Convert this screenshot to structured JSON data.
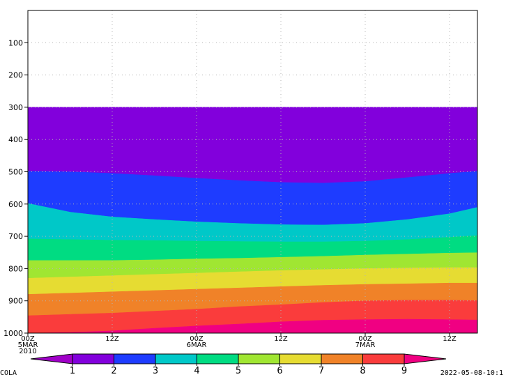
{
  "chart_data": {
    "type": "area",
    "title": "",
    "xlabel": "",
    "ylabel": "",
    "y_axis": {
      "reversed": true,
      "range": [
        0,
        1000
      ],
      "ticks": [
        100,
        200,
        300,
        400,
        500,
        600,
        700,
        800,
        900,
        1000
      ],
      "tick_labels": [
        "100",
        "200",
        "300",
        "400",
        "500",
        "600",
        "700",
        "800",
        "900",
        "1000"
      ]
    },
    "x_axis": {
      "range_hours": [
        0,
        60
      ],
      "ticks": [
        {
          "hour": 0,
          "lines": [
            "00Z",
            "5MAR",
            "2010"
          ]
        },
        {
          "hour": 12,
          "lines": [
            "12Z"
          ]
        },
        {
          "hour": 24,
          "lines": [
            "00Z",
            "6MAR"
          ]
        },
        {
          "hour": 36,
          "lines": [
            "12Z"
          ]
        },
        {
          "hour": 48,
          "lines": [
            "00Z",
            "7MAR"
          ]
        },
        {
          "hour": 60,
          "lines": [
            "12Z"
          ]
        }
      ]
    },
    "grid": true,
    "levels": [
      1,
      2,
      3,
      4,
      5,
      6,
      7,
      8,
      9
    ],
    "level_labels": [
      "1",
      "2",
      "3",
      "4",
      "5",
      "6",
      "7",
      "8",
      "9"
    ],
    "colors": [
      "#a000c8",
      "#8200dc",
      "#1e3cff",
      "#00c8c8",
      "#00dc82",
      "#a0e632",
      "#e6dc32",
      "#f08228",
      "#fa3c3c",
      "#f00082"
    ],
    "contour_x_hours": [
      0,
      6,
      12,
      18,
      24,
      30,
      36,
      42,
      48,
      54,
      60,
      66
    ],
    "contours": [
      {
        "level": 1,
        "p": [
          300,
          300,
          300,
          300,
          300,
          300,
          300,
          300,
          300,
          300,
          300,
          300
        ]
      },
      {
        "level": 2,
        "p": [
          498,
          500,
          505,
          512,
          520,
          527,
          533,
          535,
          530,
          518,
          505,
          495
        ]
      },
      {
        "level": 3,
        "p": [
          598,
          625,
          640,
          648,
          655,
          660,
          664,
          665,
          660,
          648,
          630,
          600
        ]
      },
      {
        "level": 4,
        "p": [
          708,
          710,
          712,
          713,
          715,
          716,
          717,
          717,
          715,
          710,
          703,
          695
        ]
      },
      {
        "level": 5,
        "p": [
          775,
          775,
          775,
          773,
          770,
          768,
          765,
          762,
          758,
          755,
          752,
          750
        ]
      },
      {
        "level": 6,
        "p": [
          830,
          826,
          822,
          818,
          814,
          810,
          806,
          803,
          800,
          798,
          797,
          797
        ]
      },
      {
        "level": 7,
        "p": [
          880,
          876,
          872,
          868,
          864,
          860,
          856,
          852,
          849,
          847,
          845,
          845
        ]
      },
      {
        "level": 8,
        "p": [
          946,
          942,
          938,
          932,
          926,
          918,
          912,
          905,
          900,
          898,
          898,
          900
        ]
      },
      {
        "level": 9,
        "p": [
          1000,
          998,
          993,
          985,
          978,
          972,
          965,
          960,
          958,
          957,
          958,
          960
        ]
      }
    ]
  },
  "footer": {
    "left": "COLA",
    "right": "2022-05-08-10:1"
  }
}
